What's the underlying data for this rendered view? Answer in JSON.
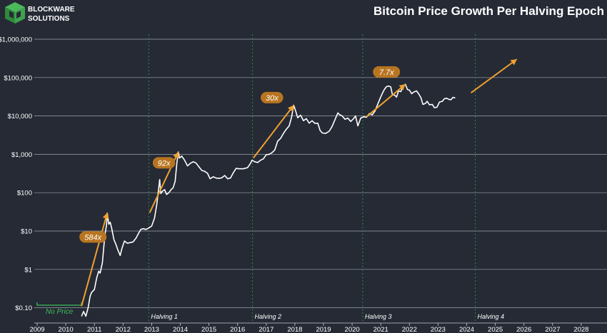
{
  "brand": {
    "name_line1": "BLOCKWARE",
    "name_line2": "SOLUTIONS",
    "logo_color": "#3fa34d"
  },
  "chart_data": {
    "type": "line",
    "title": "Bitcoin Price Growth Per Halving Epoch",
    "xlabel": "",
    "ylabel": "",
    "y_scale": "log",
    "ylim": [
      0.04,
      1000000
    ],
    "xlim": [
      2008.9,
      2028.9
    ],
    "grid": "horizontal",
    "y_ticks": [
      {
        "value": 1000000,
        "label": "$1,000,000"
      },
      {
        "value": 100000,
        "label": "$100,000"
      },
      {
        "value": 10000,
        "label": "$10,000"
      },
      {
        "value": 1000,
        "label": "$1,000"
      },
      {
        "value": 100,
        "label": "$100"
      },
      {
        "value": 10,
        "label": "$10"
      },
      {
        "value": 1,
        "label": "$1"
      },
      {
        "value": 0.1,
        "label": "$0.10"
      }
    ],
    "x_ticks": [
      "2009",
      "2010",
      "2011",
      "2012",
      "2013",
      "2014",
      "2015",
      "2016",
      "2017",
      "2018",
      "2019",
      "2020",
      "2021",
      "2022",
      "2023",
      "2024",
      "2025",
      "2026",
      "2027",
      "2028"
    ],
    "colors": {
      "background": "#252a35",
      "price_line": "#ffffff",
      "arrow": "#f0a030",
      "halving_line": "#2e8b3e",
      "badge": "#b87520",
      "grid": "#c8ccd4"
    },
    "series": [
      {
        "values": [
          [
            2010.55,
            0.06
          ],
          [
            2010.62,
            0.08
          ],
          [
            2010.7,
            0.06
          ],
          [
            2010.78,
            0.1
          ],
          [
            2010.85,
            0.2
          ],
          [
            2010.9,
            0.25
          ],
          [
            2011.0,
            0.3
          ],
          [
            2011.08,
            0.6
          ],
          [
            2011.15,
            0.9
          ],
          [
            2011.2,
            0.8
          ],
          [
            2011.28,
            1.5
          ],
          [
            2011.33,
            4
          ],
          [
            2011.37,
            8
          ],
          [
            2011.42,
            14
          ],
          [
            2011.45,
            29
          ],
          [
            2011.5,
            15
          ],
          [
            2011.55,
            17
          ],
          [
            2011.6,
            12
          ],
          [
            2011.68,
            6
          ],
          [
            2011.75,
            4.5
          ],
          [
            2011.82,
            3.2
          ],
          [
            2011.9,
            2.3
          ],
          [
            2011.96,
            3.5
          ],
          [
            2012.05,
            5.5
          ],
          [
            2012.15,
            4.8
          ],
          [
            2012.25,
            5
          ],
          [
            2012.35,
            5.2
          ],
          [
            2012.45,
            6.5
          ],
          [
            2012.55,
            9
          ],
          [
            2012.62,
            11
          ],
          [
            2012.7,
            11.5
          ],
          [
            2012.8,
            11
          ],
          [
            2012.9,
            12
          ],
          [
            2013.0,
            13.5
          ],
          [
            2013.1,
            22
          ],
          [
            2013.18,
            50
          ],
          [
            2013.25,
            140
          ],
          [
            2013.28,
            220
          ],
          [
            2013.32,
            95
          ],
          [
            2013.38,
            110
          ],
          [
            2013.45,
            120
          ],
          [
            2013.52,
            90
          ],
          [
            2013.6,
            100
          ],
          [
            2013.68,
            120
          ],
          [
            2013.75,
            135
          ],
          [
            2013.82,
            200
          ],
          [
            2013.88,
            600
          ],
          [
            2013.93,
            1150
          ],
          [
            2013.97,
            800
          ],
          [
            2014.05,
            900
          ],
          [
            2014.15,
            700
          ],
          [
            2014.25,
            500
          ],
          [
            2014.35,
            580
          ],
          [
            2014.45,
            640
          ],
          [
            2014.55,
            590
          ],
          [
            2014.65,
            470
          ],
          [
            2014.75,
            380
          ],
          [
            2014.85,
            360
          ],
          [
            2014.95,
            320
          ],
          [
            2015.04,
            230
          ],
          [
            2015.15,
            260
          ],
          [
            2015.25,
            240
          ],
          [
            2015.35,
            235
          ],
          [
            2015.45,
            245
          ],
          [
            2015.55,
            280
          ],
          [
            2015.65,
            230
          ],
          [
            2015.75,
            240
          ],
          [
            2015.85,
            330
          ],
          [
            2015.95,
            430
          ],
          [
            2016.05,
            420
          ],
          [
            2016.2,
            420
          ],
          [
            2016.35,
            450
          ],
          [
            2016.45,
            580
          ],
          [
            2016.5,
            700
          ],
          [
            2016.6,
            640
          ],
          [
            2016.7,
            610
          ],
          [
            2016.8,
            700
          ],
          [
            2016.9,
            760
          ],
          [
            2017.0,
            980
          ],
          [
            2017.1,
            1000
          ],
          [
            2017.2,
            1100
          ],
          [
            2017.3,
            1300
          ],
          [
            2017.4,
            2200
          ],
          [
            2017.5,
            2600
          ],
          [
            2017.6,
            3500
          ],
          [
            2017.7,
            4500
          ],
          [
            2017.8,
            5500
          ],
          [
            2017.88,
            9000
          ],
          [
            2017.96,
            19000
          ],
          [
            2018.02,
            14000
          ],
          [
            2018.1,
            9000
          ],
          [
            2018.2,
            10500
          ],
          [
            2018.3,
            7500
          ],
          [
            2018.4,
            8500
          ],
          [
            2018.5,
            6500
          ],
          [
            2018.6,
            7500
          ],
          [
            2018.7,
            6400
          ],
          [
            2018.8,
            6500
          ],
          [
            2018.88,
            4200
          ],
          [
            2018.96,
            3600
          ],
          [
            2019.08,
            3500
          ],
          [
            2019.2,
            4000
          ],
          [
            2019.3,
            5300
          ],
          [
            2019.4,
            8000
          ],
          [
            2019.5,
            12000
          ],
          [
            2019.55,
            11000
          ],
          [
            2019.65,
            10000
          ],
          [
            2019.75,
            8200
          ],
          [
            2019.85,
            8800
          ],
          [
            2019.95,
            7200
          ],
          [
            2020.05,
            8500
          ],
          [
            2020.12,
            10000
          ],
          [
            2020.2,
            5500
          ],
          [
            2020.3,
            8800
          ],
          [
            2020.4,
            9500
          ],
          [
            2020.5,
            9200
          ],
          [
            2020.6,
            11500
          ],
          [
            2020.7,
            10700
          ],
          [
            2020.8,
            13500
          ],
          [
            2020.88,
            19000
          ],
          [
            2020.98,
            29000
          ],
          [
            2021.05,
            38000
          ],
          [
            2021.12,
            48000
          ],
          [
            2021.2,
            58000
          ],
          [
            2021.28,
            60000
          ],
          [
            2021.35,
            57000
          ],
          [
            2021.4,
            37000
          ],
          [
            2021.5,
            34000
          ],
          [
            2021.55,
            31000
          ],
          [
            2021.62,
            45000
          ],
          [
            2021.7,
            43000
          ],
          [
            2021.78,
            61000
          ],
          [
            2021.86,
            67000
          ],
          [
            2021.93,
            49000
          ],
          [
            2022.0,
            47000
          ],
          [
            2022.08,
            38000
          ],
          [
            2022.15,
            42000
          ],
          [
            2022.25,
            45000
          ],
          [
            2022.32,
            38000
          ],
          [
            2022.4,
            30000
          ],
          [
            2022.47,
            20000
          ],
          [
            2022.55,
            21000
          ],
          [
            2022.62,
            24000
          ],
          [
            2022.7,
            19500
          ],
          [
            2022.8,
            20000
          ],
          [
            2022.87,
            16500
          ],
          [
            2022.96,
            16800
          ],
          [
            2023.05,
            23000
          ],
          [
            2023.15,
            24000
          ],
          [
            2023.22,
            28000
          ],
          [
            2023.3,
            29000
          ],
          [
            2023.38,
            27000
          ],
          [
            2023.45,
            26500
          ],
          [
            2023.52,
            30500
          ],
          [
            2023.6,
            29500
          ]
        ]
      }
    ],
    "growth_arrows": [
      {
        "from": [
          2010.55,
          0.11
        ],
        "to": [
          2011.45,
          30
        ],
        "label": "584x",
        "label_at": [
          2010.95,
          7
        ]
      },
      {
        "from": [
          2012.93,
          30
        ],
        "to": [
          2013.93,
          1150
        ],
        "label": "92x",
        "label_at": [
          2013.43,
          600
        ]
      },
      {
        "from": [
          2016.55,
          800
        ],
        "to": [
          2017.96,
          19000
        ],
        "label": "30x",
        "label_at": [
          2017.2,
          30000
        ]
      },
      {
        "from": [
          2020.5,
          9500
        ],
        "to": [
          2021.86,
          67000
        ],
        "label": "7.7x",
        "label_at": [
          2021.2,
          140000
        ]
      },
      {
        "from": [
          2024.15,
          40000
        ],
        "to": [
          2025.75,
          300000
        ],
        "label": "",
        "label_at": null
      }
    ],
    "halvings": [
      {
        "x": 2012.9,
        "label": "Halving 1"
      },
      {
        "x": 2016.52,
        "label": "Halving 2"
      },
      {
        "x": 2020.37,
        "label": "Halving 3"
      },
      {
        "x": 2024.3,
        "label": "Halving 4"
      }
    ],
    "no_price": {
      "from": 2009.0,
      "to": 2010.55,
      "label": "No Price"
    }
  }
}
